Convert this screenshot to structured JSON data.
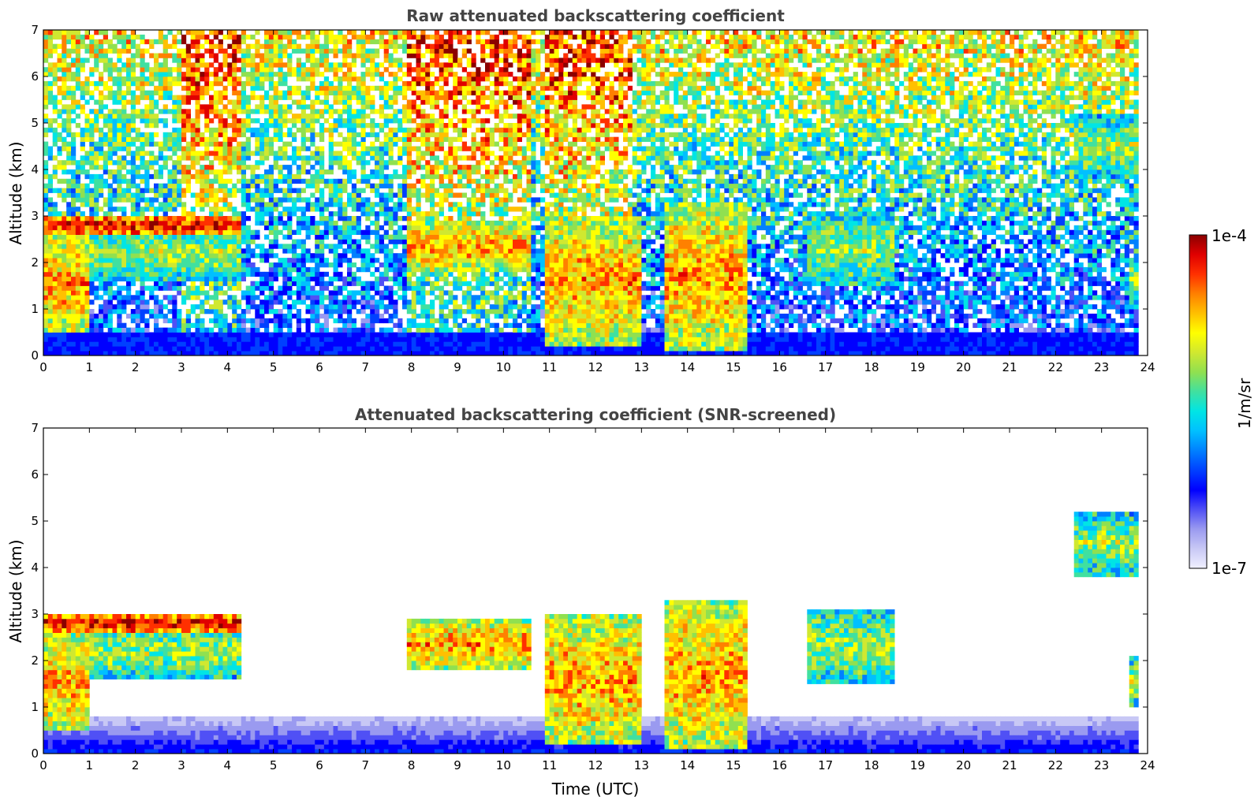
{
  "chart_data": [
    {
      "type": "heatmap",
      "title": "Raw attenuated backscattering coefficient",
      "xlabel": "",
      "ylabel": "Altitude (km)",
      "xlim": [
        0,
        24
      ],
      "ylim": [
        0,
        7
      ],
      "xticks": [
        "0",
        "1",
        "2",
        "3",
        "4",
        "5",
        "6",
        "7",
        "8",
        "9",
        "10",
        "11",
        "12",
        "13",
        "14",
        "15",
        "16",
        "17",
        "18",
        "19",
        "20",
        "21",
        "22",
        "23",
        "24"
      ],
      "yticks": [
        "0",
        "1",
        "2",
        "3",
        "4",
        "5",
        "6",
        "7"
      ],
      "data_end_hour": 23.8,
      "boundary_layer_top_km": 0.5,
      "cloud_layers": [
        {
          "start_h": 0.0,
          "end_h": 4.3,
          "base_km": 2.6,
          "top_km": 3.0,
          "intensity": "very high"
        },
        {
          "start_h": 0.0,
          "end_h": 1.0,
          "base_km": 0.5,
          "top_km": 2.6,
          "intensity": "high"
        },
        {
          "start_h": 1.0,
          "end_h": 4.3,
          "base_km": 1.6,
          "top_km": 2.8,
          "intensity": "medium"
        },
        {
          "start_h": 7.9,
          "end_h": 10.6,
          "base_km": 1.8,
          "top_km": 2.9,
          "intensity": "high"
        },
        {
          "start_h": 10.9,
          "end_h": 13.0,
          "base_km": 0.2,
          "top_km": 3.0,
          "intensity": "high"
        },
        {
          "start_h": 13.5,
          "end_h": 15.3,
          "base_km": 0.1,
          "top_km": 3.3,
          "intensity": "high"
        },
        {
          "start_h": 16.6,
          "end_h": 18.5,
          "base_km": 1.5,
          "top_km": 3.1,
          "intensity": "medium"
        },
        {
          "start_h": 22.4,
          "end_h": 23.8,
          "base_km": 3.8,
          "top_km": 5.2,
          "intensity": "medium"
        },
        {
          "start_h": 23.6,
          "end_h": 23.8,
          "base_km": 1.0,
          "top_km": 2.1,
          "intensity": "medium"
        }
      ],
      "noisy_background_periods": [
        {
          "start_h": 3.0,
          "end_h": 4.3
        },
        {
          "start_h": 7.9,
          "end_h": 10.6
        },
        {
          "start_h": 10.9,
          "end_h": 12.8
        }
      ]
    },
    {
      "type": "heatmap",
      "title": "Attenuated backscattering coefficient (SNR-screened)",
      "xlabel": "Time (UTC)",
      "ylabel": "Altitude (km)",
      "xlim": [
        0,
        24
      ],
      "ylim": [
        0,
        7
      ],
      "xticks": [
        "0",
        "1",
        "2",
        "3",
        "4",
        "5",
        "6",
        "7",
        "8",
        "9",
        "10",
        "11",
        "12",
        "13",
        "14",
        "15",
        "16",
        "17",
        "18",
        "19",
        "20",
        "21",
        "22",
        "23",
        "24"
      ],
      "yticks": [
        "0",
        "1",
        "2",
        "3",
        "4",
        "5",
        "6",
        "7"
      ],
      "boundary_layer_top_km": 0.8
    }
  ],
  "colorbar": {
    "label": "1/m/sr",
    "max_label": "1e-4",
    "min_label": "1e-7",
    "scale": "log",
    "range": [
      1e-07,
      0.0001
    ],
    "colors": [
      "#f0f0ff",
      "#c8c8f5",
      "#9a9af0",
      "#5050f5",
      "#0000ff",
      "#0040ff",
      "#0080ff",
      "#00c0ff",
      "#00e5e5",
      "#40e0a0",
      "#90e050",
      "#d0e830",
      "#ffff00",
      "#ffc000",
      "#ff8000",
      "#ff3000",
      "#e00000",
      "#8b0000"
    ]
  }
}
